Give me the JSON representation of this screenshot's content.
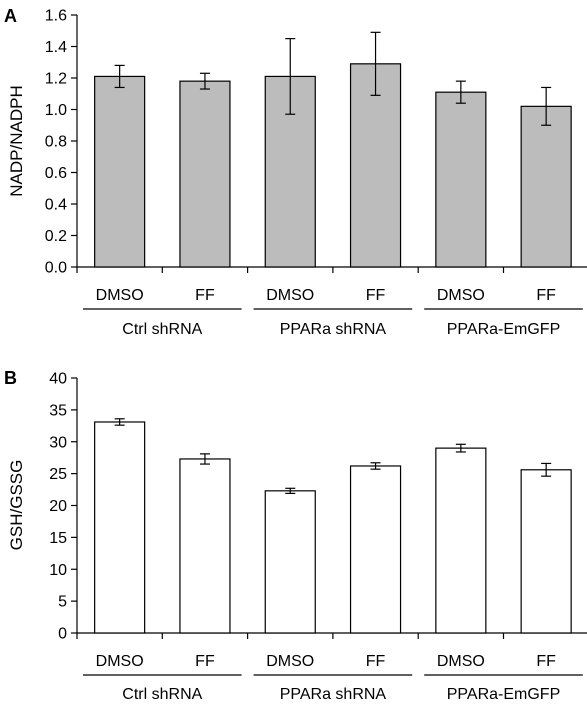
{
  "chart_data": [
    {
      "panel": "A",
      "type": "bar",
      "ylabel": "NADP/NADPH",
      "ylim": [
        0,
        1.6
      ],
      "yticks": [
        "0.0",
        "0.2",
        "0.4",
        "0.6",
        "0.8",
        "1.0",
        "1.2",
        "1.4",
        "1.6"
      ],
      "categories": [
        "DMSO",
        "FF",
        "DMSO",
        "FF",
        "DMSO",
        "FF"
      ],
      "groups": [
        "Ctrl shRNA",
        "PPARa shRNA",
        "PPARa-EmGFP"
      ],
      "values": [
        1.21,
        1.18,
        1.21,
        1.29,
        1.11,
        1.02
      ],
      "errors": [
        0.07,
        0.05,
        0.24,
        0.2,
        0.07,
        0.12
      ],
      "bar_color": "#bcbcbc",
      "grid": false
    },
    {
      "panel": "B",
      "type": "bar",
      "ylabel": "GSH/GSSG",
      "ylim": [
        0,
        40
      ],
      "yticks": [
        "0",
        "5",
        "10",
        "15",
        "20",
        "25",
        "30",
        "35",
        "40"
      ],
      "categories": [
        "DMSO",
        "FF",
        "DMSO",
        "FF",
        "DMSO",
        "FF"
      ],
      "groups": [
        "Ctrl shRNA",
        "PPARa shRNA",
        "PPARa-EmGFP"
      ],
      "values": [
        33.1,
        27.3,
        22.3,
        26.2,
        29.0,
        25.6
      ],
      "errors": [
        0.5,
        0.8,
        0.4,
        0.5,
        0.6,
        1.0
      ],
      "bar_color": "#ffffff",
      "grid": false
    }
  ]
}
